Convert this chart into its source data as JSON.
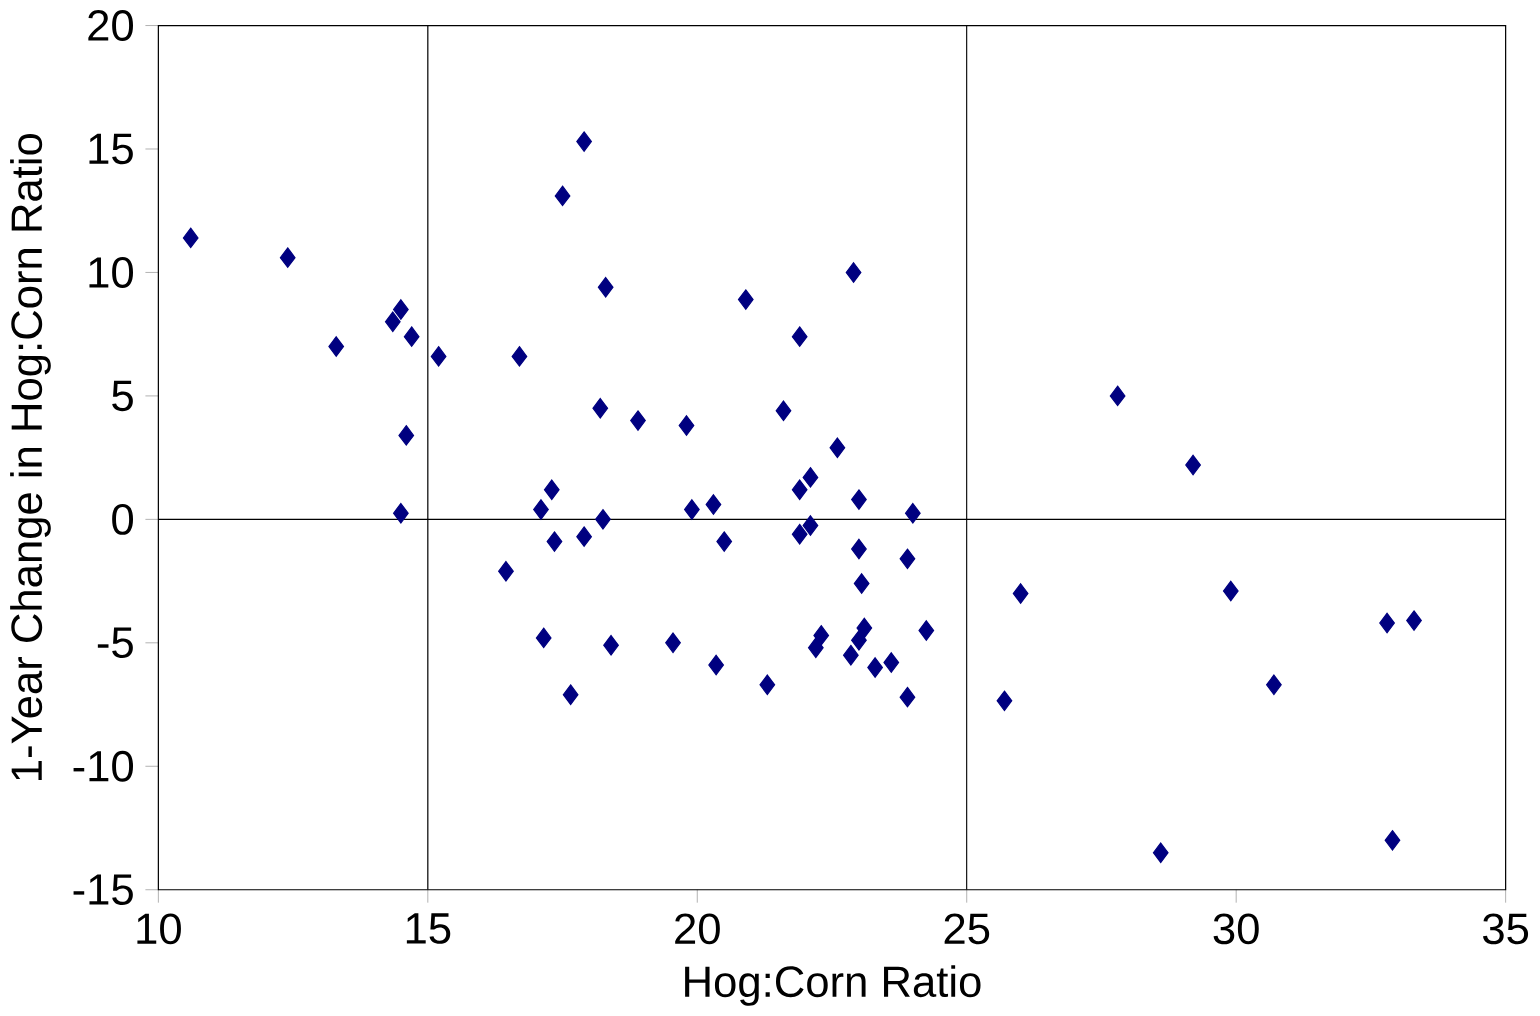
{
  "chart_data": {
    "type": "scatter",
    "xlabel": "Hog:Corn Ratio",
    "ylabel": "1-Year Change in Hog:Corn Ratio",
    "x": [
      10.6,
      12.4,
      13.3,
      14.35,
      14.5,
      14.7,
      14.6,
      14.5,
      15.2,
      16.7,
      16.45,
      17.5,
      17.9,
      18.3,
      18.2,
      18.9,
      19.8,
      20.9,
      21.9,
      22.9,
      21.6,
      22.6,
      22.1,
      21.9,
      21.9,
      22.1,
      23.0,
      24.0,
      17.3,
      17.1,
      17.35,
      17.9,
      18.25,
      19.9,
      20.3,
      20.5,
      23.0,
      23.9,
      23.05,
      17.15,
      17.65,
      18.4,
      19.55,
      20.35,
      21.3,
      22.3,
      22.2,
      22.85,
      23.0,
      23.1,
      23.3,
      23.6,
      23.9,
      24.25,
      25.7,
      26.0,
      27.8,
      29.2,
      29.9,
      30.7,
      28.6,
      32.8,
      33.3,
      32.9
    ],
    "values": [
      11.4,
      10.6,
      7.0,
      8.0,
      8.5,
      7.4,
      3.4,
      0.25,
      6.6,
      6.6,
      -2.1,
      13.1,
      15.3,
      9.4,
      4.5,
      4.0,
      3.8,
      8.9,
      7.4,
      10.0,
      4.4,
      2.9,
      1.7,
      1.2,
      -0.6,
      -0.25,
      0.8,
      0.25,
      1.2,
      0.4,
      -0.9,
      -0.7,
      0.0,
      0.4,
      0.6,
      -0.9,
      -1.2,
      -1.6,
      -2.6,
      -4.8,
      -7.1,
      -5.1,
      -5.0,
      -5.9,
      -6.7,
      -4.7,
      -5.2,
      -5.5,
      -4.9,
      -4.4,
      -6.0,
      -5.8,
      -7.2,
      -4.5,
      -7.35,
      -3.0,
      5.0,
      2.2,
      -2.9,
      -6.7,
      -13.5,
      -4.2,
      -4.1,
      -13.0
    ],
    "color": "#000080",
    "marker": "diamond",
    "xlim": [
      10,
      35
    ],
    "xticks": [
      10,
      15,
      20,
      25,
      30,
      35
    ],
    "ylim": [
      -15,
      20
    ],
    "yticks": [
      -15,
      -10,
      -5,
      0,
      5,
      10,
      15,
      20
    ],
    "ref_lines": [
      {
        "axis": "x",
        "value": 15
      },
      {
        "axis": "x",
        "value": 25
      },
      {
        "axis": "y",
        "value": 0
      }
    ]
  }
}
